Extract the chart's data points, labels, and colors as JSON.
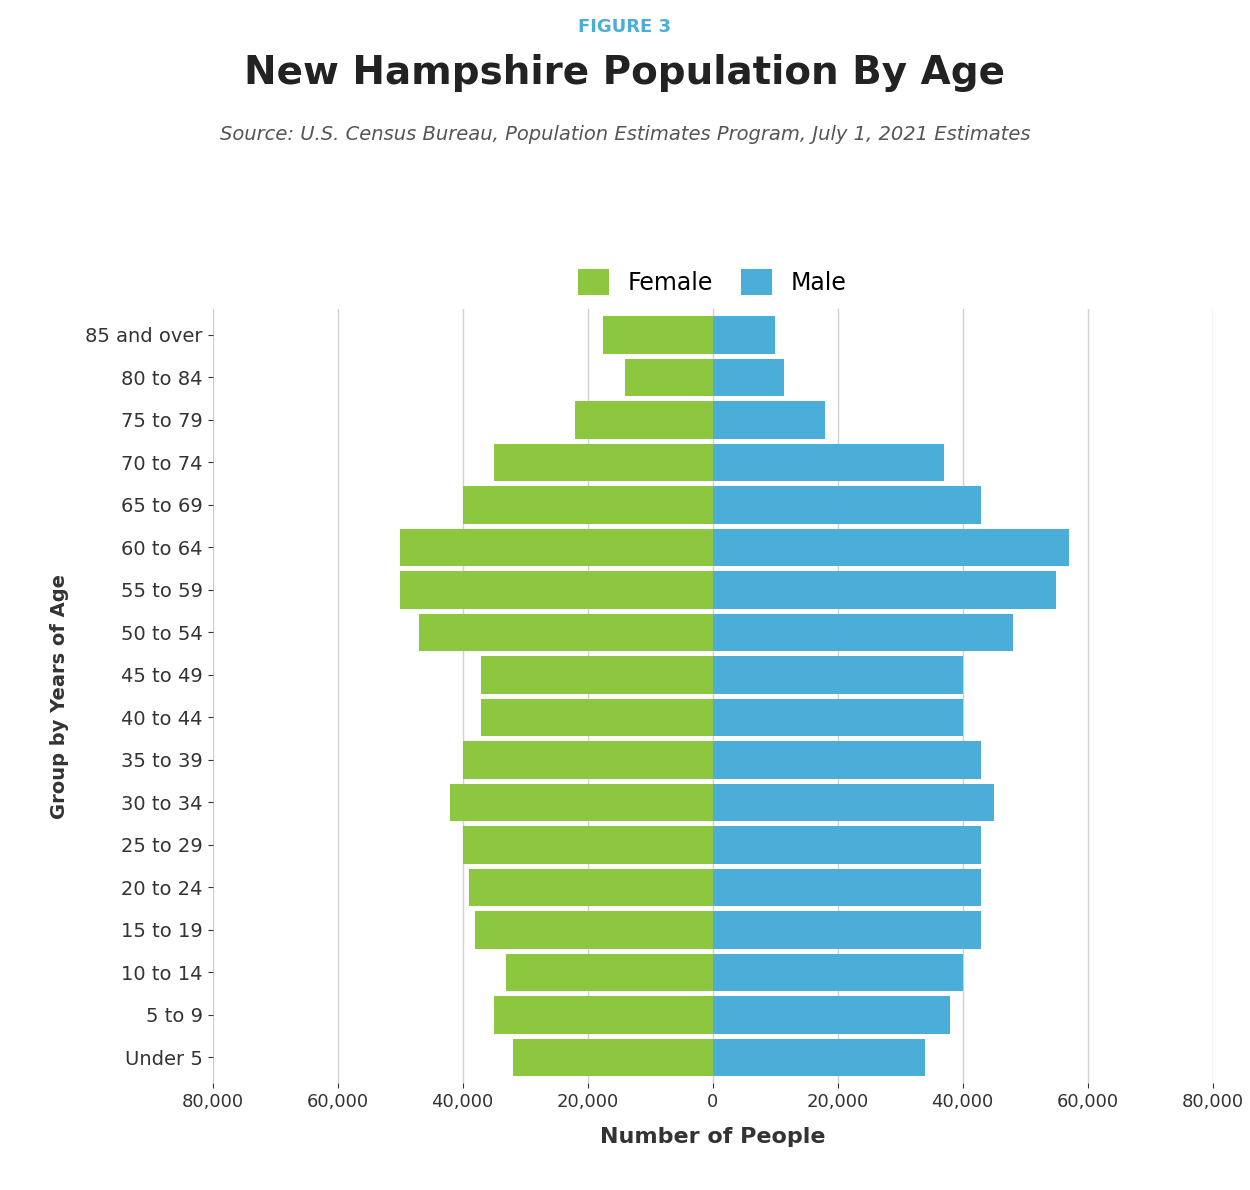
{
  "figure_label": "FIGURE 3",
  "title": "New Hampshire Population By Age",
  "source": "Source: U.S. Census Bureau, Population Estimates Program, July 1, 2021 Estimates",
  "ylabel": "Group by Years of Age",
  "xlabel": "Number of People",
  "age_groups": [
    "Under 5",
    "5 to 9",
    "10 to 14",
    "15 to 19",
    "20 to 24",
    "25 to 29",
    "30 to 34",
    "35 to 39",
    "40 to 44",
    "45 to 49",
    "50 to 54",
    "55 to 59",
    "60 to 64",
    "65 to 69",
    "70 to 74",
    "75 to 79",
    "80 to 84",
    "85 and over"
  ],
  "female_values": [
    32000,
    35000,
    33000,
    38000,
    39000,
    40000,
    42000,
    40000,
    37000,
    37000,
    47000,
    50000,
    50000,
    40000,
    35000,
    22000,
    14000,
    17500
  ],
  "male_values": [
    34000,
    38000,
    40000,
    43000,
    43000,
    43000,
    45000,
    43000,
    40000,
    40000,
    48000,
    55000,
    57000,
    43000,
    37000,
    18000,
    11500,
    10000
  ],
  "female_color": "#8DC63F",
  "male_color": "#4AAED9",
  "background_color": "#FFFFFF",
  "grid_color": "#D0D0D0",
  "xlim": 80000,
  "xtick_step": 20000,
  "figure_label_color": "#4AAED9",
  "title_color": "#222222",
  "source_color": "#555555",
  "axis_label_color": "#333333",
  "bar_gap": 0.12
}
